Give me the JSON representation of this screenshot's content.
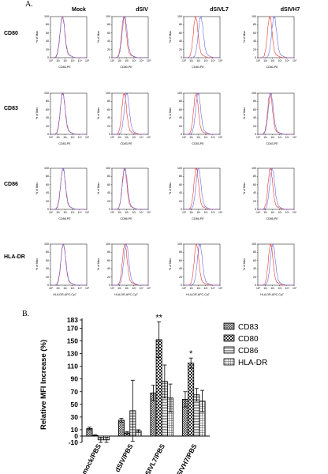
{
  "panels": {
    "a": "A.",
    "b": "B."
  },
  "columns": [
    "Mock",
    "dSIV",
    "dSIVL7",
    "dSIVH7"
  ],
  "rows": [
    "CD80",
    "CD83",
    "CD86",
    "HLA-DR"
  ],
  "histograms": {
    "y_axis_label": "% of Max",
    "y_ticks": [
      "0",
      "20",
      "40",
      "60",
      "80",
      "100"
    ],
    "x_ticks": [
      "10⁰",
      "10¹",
      "10²",
      "10³",
      "10⁴",
      "10⁵"
    ],
    "x_axis_labels": [
      "CD80-PE",
      "CD83-PE",
      "CD86-PE",
      "HLA-DR-APC-Cy7"
    ],
    "colors": {
      "control": "#e8382d",
      "treated": "#6a6ae0"
    },
    "peak_shift_decades": [
      [
        0.0,
        0.1,
        0.7,
        0.6
      ],
      [
        0.0,
        0.35,
        0.3,
        0.1
      ],
      [
        0.0,
        0.05,
        0.3,
        0.25
      ],
      [
        0.0,
        0.2,
        0.45,
        0.3
      ]
    ]
  },
  "chart_data": {
    "type": "bar",
    "ylabel": "Relative MFI Increase (%)",
    "ylim": [
      -10,
      183
    ],
    "y_ticks": [
      -10,
      0,
      10,
      30,
      50,
      70,
      90,
      110,
      130,
      150,
      170,
      183
    ],
    "categories": [
      "mock/PBS",
      "dSIV/PBS",
      "dSIVL7/PBS",
      "dSIVH7/PBS"
    ],
    "series": [
      {
        "name": "CD83",
        "values": [
          12,
          25,
          68,
          58
        ],
        "errors": [
          2,
          3,
          12,
          12
        ]
      },
      {
        "name": "CD80",
        "values": [
          1,
          5,
          152,
          115
        ],
        "errors": [
          1,
          2,
          28,
          8
        ]
      },
      {
        "name": "CD86",
        "values": [
          -6,
          40,
          86,
          65
        ],
        "errors": [
          4,
          48,
          26,
          10
        ]
      },
      {
        "name": "HLA-DR",
        "values": [
          -6,
          8,
          60,
          55
        ],
        "errors": [
          4,
          2,
          22,
          17
        ]
      }
    ],
    "annotations": [
      {
        "text": "**",
        "category": "dSIVL7/PBS",
        "series": "CD80"
      },
      {
        "text": "*",
        "category": "dSIVH7/PBS",
        "series": "CD80"
      }
    ],
    "legend": "right",
    "patterns": [
      "cross-hatch",
      "checker",
      "horizontal",
      "fine-grid"
    ]
  }
}
